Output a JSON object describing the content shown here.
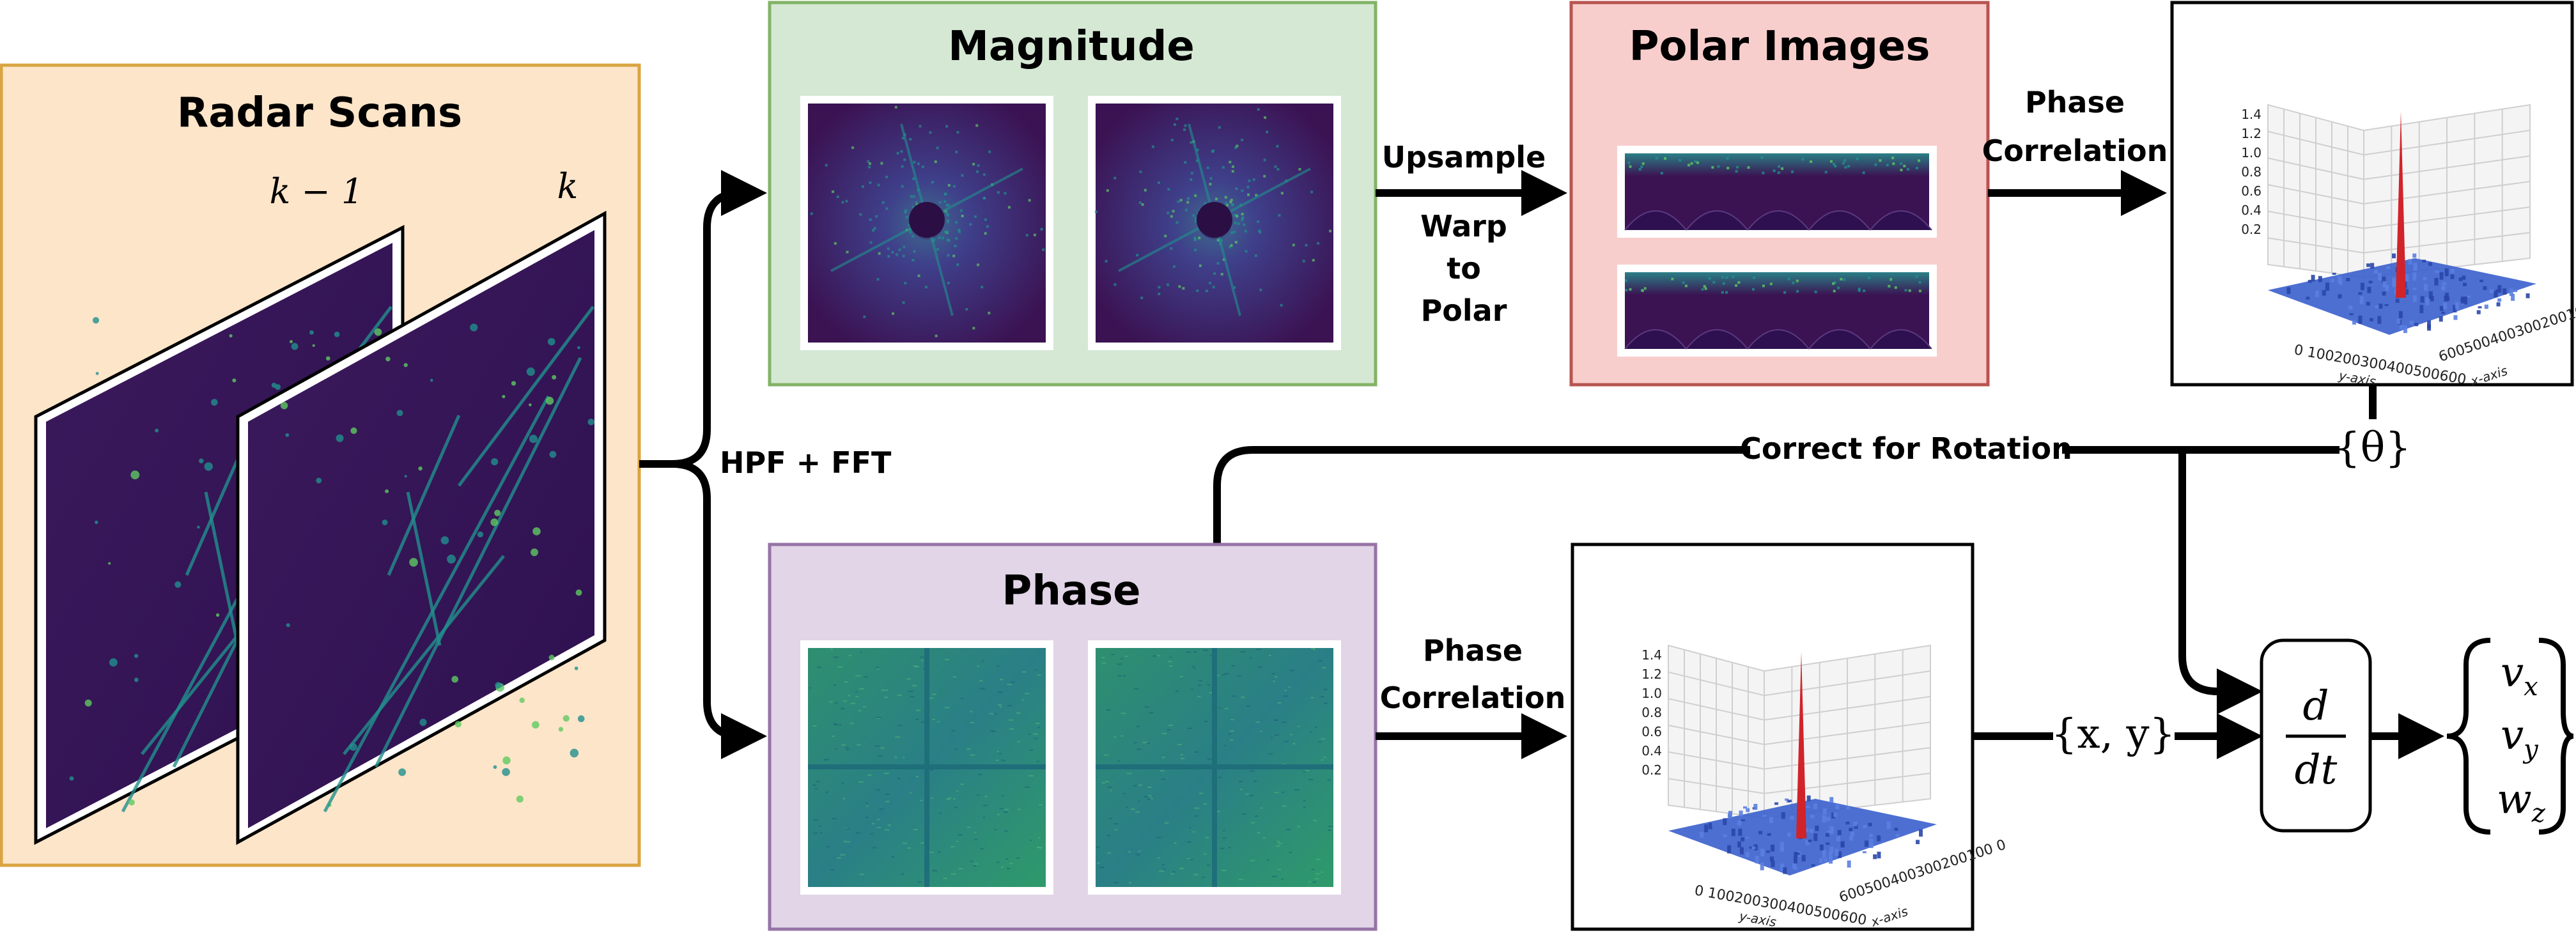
{
  "radar_scans": {
    "title": "Radar Scans",
    "frame_prev": "k − 1",
    "frame_curr": "k"
  },
  "hpf_fft": "HPF + FFT",
  "magnitude": {
    "title": "Magnitude"
  },
  "upsample": "Upsample",
  "warp": [
    "Warp",
    "to",
    "Polar"
  ],
  "polar_images": {
    "title": "Polar Images"
  },
  "phase_correlation_top": [
    "Phase",
    "Correlation"
  ],
  "phase": {
    "title": "Phase"
  },
  "phase_correlation_bottom": [
    "Phase",
    "Correlation"
  ],
  "correct_for_rotation": "Correct for Rotation",
  "theta_label": "{θ}",
  "xy_label": "{x, y}",
  "derivative": {
    "numerator": "d",
    "denominator": "dt"
  },
  "outputs": [
    "v",
    "v",
    "w"
  ],
  "output_subscripts": [
    "x",
    "y",
    "z"
  ],
  "surface_plot": {
    "z_ticks": [
      "1.4",
      "1.2",
      "1.0",
      "0.8",
      "0.6",
      "0.4",
      "0.2"
    ],
    "y_ticks": "0 100200300400500600",
    "x_ticks": "600500400300200100 0",
    "y_label": "y-axis",
    "x_label": "x-axis"
  },
  "colors": {
    "radar_fill": "#fde5c9",
    "radar_border": "#d9a441",
    "magnitude_fill": "#d5e8d4",
    "magnitude_border": "#82b366",
    "polar_fill": "#f8cecc",
    "polar_border": "#b85450",
    "phase_fill": "#e1d5e7",
    "phase_border": "#9673a6",
    "viridis_dark": "#3b1252",
    "viridis_mid": "#21908d",
    "viridis_light": "#5ec962",
    "surface_blue": "#3a5fcd",
    "surface_peak": "#d1232a"
  }
}
